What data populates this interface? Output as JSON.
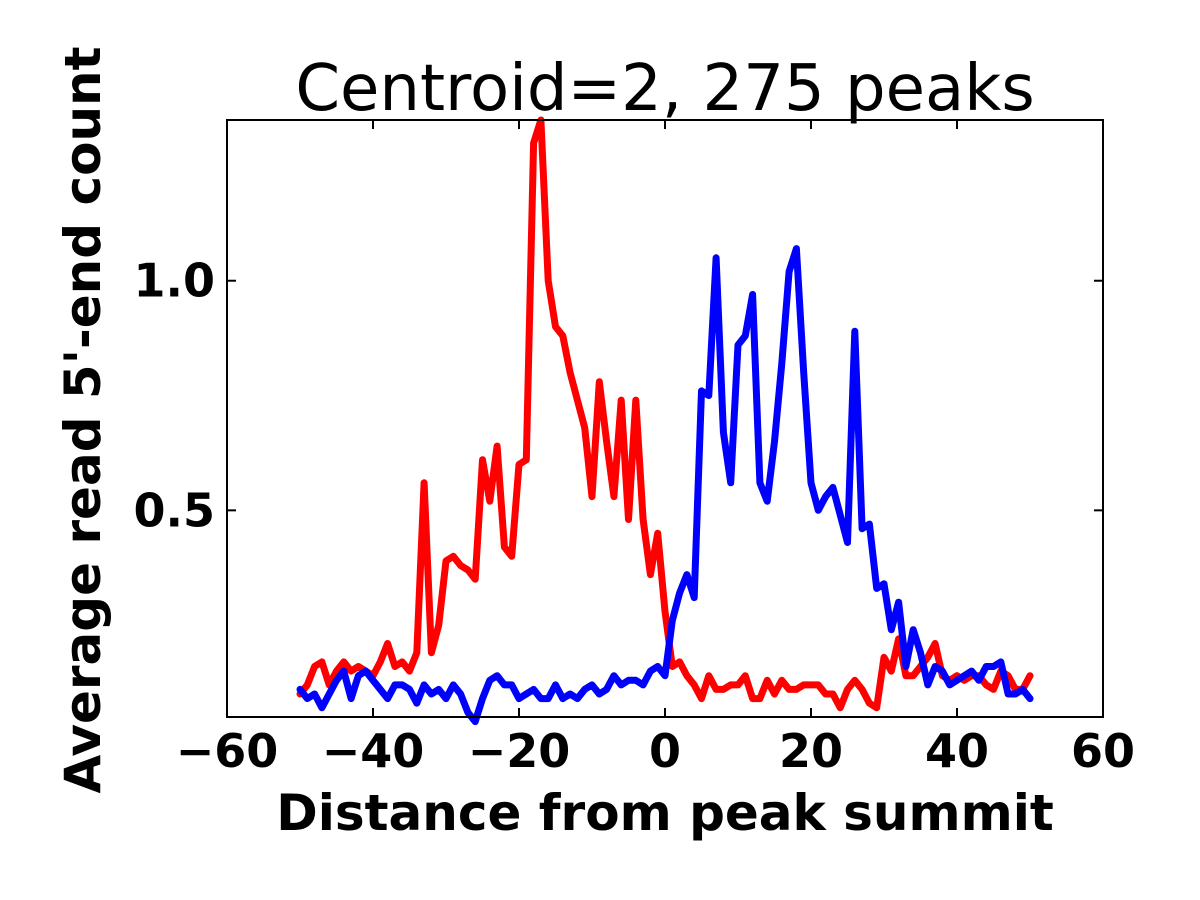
{
  "chart_data": {
    "type": "line",
    "title": "Centroid=2, 275 peaks",
    "xlabel": "Distance from peak summit",
    "ylabel": "Average read 5'-end count",
    "xlim": [
      -60,
      60
    ],
    "ylim": [
      0.05,
      1.35
    ],
    "xticks": [
      -60,
      -40,
      -20,
      0,
      20,
      40,
      60
    ],
    "xtick_labels": [
      "−60",
      "−40",
      "−20",
      "0",
      "20",
      "40",
      "60"
    ],
    "yticks": [
      0.5,
      1.0
    ],
    "ytick_labels": [
      "0.5",
      "1.0"
    ],
    "grid": false,
    "legend": "none",
    "x": [
      -50,
      -49,
      -48,
      -47,
      -46,
      -45,
      -44,
      -43,
      -42,
      -41,
      -40,
      -39,
      -38,
      -37,
      -36,
      -35,
      -34,
      -33,
      -32,
      -31,
      -30,
      -29,
      -28,
      -27,
      -26,
      -25,
      -24,
      -23,
      -22,
      -21,
      -20,
      -19,
      -18,
      -17,
      -16,
      -15,
      -14,
      -13,
      -12,
      -11,
      -10,
      -9,
      -8,
      -7,
      -6,
      -5,
      -4,
      -3,
      -2,
      -1,
      0,
      1,
      2,
      3,
      4,
      5,
      6,
      7,
      8,
      9,
      10,
      11,
      12,
      13,
      14,
      15,
      16,
      17,
      18,
      19,
      20,
      21,
      22,
      23,
      24,
      25,
      26,
      27,
      28,
      29,
      30,
      31,
      32,
      33,
      34,
      35,
      36,
      37,
      38,
      39,
      40,
      41,
      42,
      43,
      44,
      45,
      46,
      47,
      48,
      49,
      50
    ],
    "series": [
      {
        "color": "#ff0000",
        "values": [
          0.1,
          0.12,
          0.16,
          0.17,
          0.12,
          0.15,
          0.17,
          0.15,
          0.16,
          0.15,
          0.14,
          0.17,
          0.21,
          0.16,
          0.17,
          0.15,
          0.19,
          0.56,
          0.19,
          0.25,
          0.39,
          0.4,
          0.38,
          0.37,
          0.35,
          0.61,
          0.52,
          0.64,
          0.42,
          0.4,
          0.6,
          0.61,
          1.3,
          1.35,
          1.0,
          0.9,
          0.88,
          0.8,
          0.74,
          0.68,
          0.53,
          0.78,
          0.65,
          0.53,
          0.74,
          0.48,
          0.74,
          0.48,
          0.36,
          0.45,
          0.28,
          0.16,
          0.17,
          0.14,
          0.12,
          0.09,
          0.14,
          0.11,
          0.11,
          0.12,
          0.12,
          0.14,
          0.09,
          0.09,
          0.13,
          0.1,
          0.13,
          0.11,
          0.11,
          0.12,
          0.12,
          0.12,
          0.1,
          0.1,
          0.07,
          0.11,
          0.13,
          0.11,
          0.08,
          0.07,
          0.18,
          0.15,
          0.22,
          0.14,
          0.14,
          0.16,
          0.18,
          0.21,
          0.14,
          0.13,
          0.14,
          0.13,
          0.14,
          0.14,
          0.12,
          0.11,
          0.15,
          0.14,
          0.11,
          0.11,
          0.14
        ]
      },
      {
        "color": "#0000ff",
        "values": [
          0.11,
          0.09,
          0.1,
          0.07,
          0.1,
          0.13,
          0.15,
          0.09,
          0.14,
          0.15,
          0.13,
          0.11,
          0.09,
          0.12,
          0.12,
          0.11,
          0.08,
          0.12,
          0.1,
          0.11,
          0.09,
          0.12,
          0.1,
          0.06,
          0.04,
          0.09,
          0.13,
          0.14,
          0.12,
          0.12,
          0.09,
          0.1,
          0.11,
          0.09,
          0.09,
          0.12,
          0.09,
          0.1,
          0.09,
          0.11,
          0.12,
          0.1,
          0.11,
          0.14,
          0.12,
          0.13,
          0.13,
          0.12,
          0.15,
          0.16,
          0.14,
          0.26,
          0.32,
          0.36,
          0.31,
          0.76,
          0.75,
          1.05,
          0.67,
          0.56,
          0.86,
          0.88,
          0.97,
          0.56,
          0.52,
          0.65,
          0.82,
          1.02,
          1.07,
          0.8,
          0.56,
          0.5,
          0.53,
          0.55,
          0.49,
          0.43,
          0.89,
          0.46,
          0.47,
          0.33,
          0.34,
          0.24,
          0.3,
          0.16,
          0.24,
          0.19,
          0.12,
          0.16,
          0.15,
          0.12,
          0.13,
          0.14,
          0.15,
          0.13,
          0.16,
          0.16,
          0.17,
          0.1,
          0.1,
          0.11,
          0.09
        ]
      }
    ]
  }
}
